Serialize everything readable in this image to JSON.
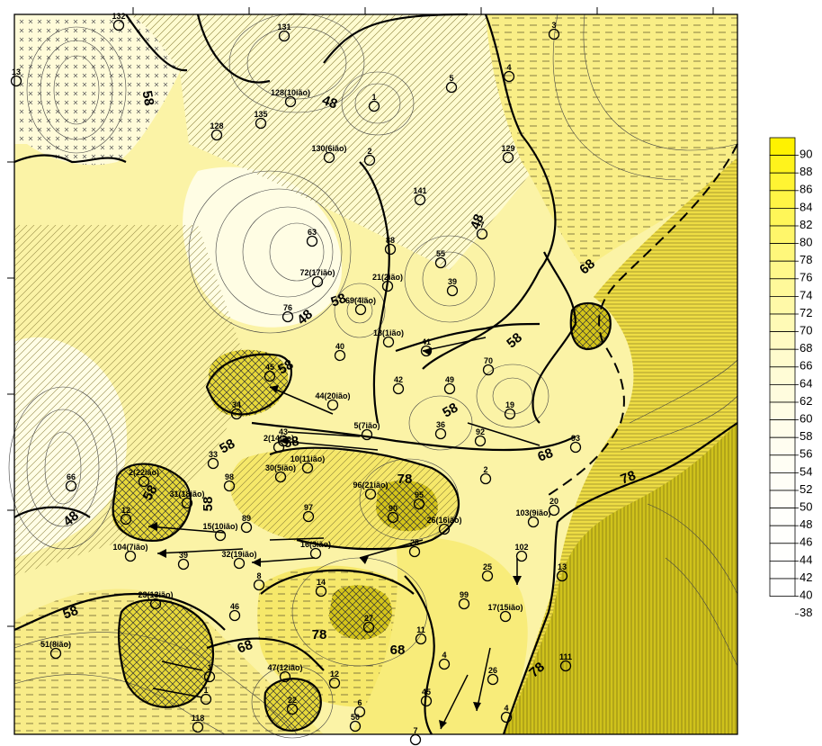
{
  "colors": {
    "low": "#ffffea",
    "mid": "#fbf29a",
    "high": "#f0e54a",
    "top": "#d9cc1a",
    "highest": "#c7b90e"
  },
  "legend": {
    "values": [
      "90",
      "88",
      "86",
      "84",
      "82",
      "80",
      "78",
      "76",
      "74",
      "72",
      "70",
      "68",
      "66",
      "64",
      "62",
      "60",
      "58",
      "56",
      "54",
      "52",
      "50",
      "48",
      "46",
      "44",
      "42",
      "40",
      "38"
    ],
    "fills": [
      "#fff200",
      "#fff31c",
      "#fff433",
      "#fff545",
      "#fff658",
      "#fff66a",
      "#fff77b",
      "#fff88b",
      "#fff99a",
      "#fff9a8",
      "#fffab6",
      "#fffbc3",
      "#fffbcd",
      "#fffcd6",
      "#fffcde",
      "#fffde5",
      "#fffdeb",
      "#fffdf0",
      "#fffef4",
      "#fffef7",
      "#fffef9",
      "#fffffb",
      "#fffffc",
      "#fffffd",
      "#fffffe",
      "#ffffff"
    ]
  },
  "contour_labels": [
    "58",
    "48",
    "48",
    "48",
    "68",
    "58",
    "58",
    "58",
    "58",
    "68",
    "78",
    "58",
    "58",
    "58",
    "58",
    "78",
    "68",
    "78",
    "68",
    "78",
    "58",
    "48"
  ],
  "wells": [
    {
      "label": "132"
    },
    {
      "label": "131"
    },
    {
      "label": "3"
    },
    {
      "label": "13"
    },
    {
      "label": "4"
    },
    {
      "label": "128(10ião)"
    },
    {
      "label": "1"
    },
    {
      "label": "5"
    },
    {
      "label": "128"
    },
    {
      "label": "135"
    },
    {
      "label": "130(6ião)"
    },
    {
      "label": "2"
    },
    {
      "label": "129"
    },
    {
      "label": "141"
    },
    {
      "label": "7"
    },
    {
      "label": "63"
    },
    {
      "label": "88"
    },
    {
      "label": "55"
    },
    {
      "label": "72(17ião)"
    },
    {
      "label": "21(2ião)"
    },
    {
      "label": "39"
    },
    {
      "label": "69(4ião)"
    },
    {
      "label": "76"
    },
    {
      "label": "18(1ião)"
    },
    {
      "label": "41"
    },
    {
      "label": "40"
    },
    {
      "label": "70"
    },
    {
      "label": "45"
    },
    {
      "label": "42"
    },
    {
      "label": "49"
    },
    {
      "label": "44(20ião)"
    },
    {
      "label": "19"
    },
    {
      "label": "34"
    },
    {
      "label": "5(7ião)"
    },
    {
      "label": "36"
    },
    {
      "label": "43"
    },
    {
      "label": "92"
    },
    {
      "label": "93"
    },
    {
      "label": "2(14ião)"
    },
    {
      "label": "33"
    },
    {
      "label": "10(11ião)"
    },
    {
      "label": "66"
    },
    {
      "label": "2(22ião)"
    },
    {
      "label": "98"
    },
    {
      "label": "30(5ião)"
    },
    {
      "label": "96(21ião)"
    },
    {
      "label": "95"
    },
    {
      "label": "2"
    },
    {
      "label": "31(18ião)"
    },
    {
      "label": "97"
    },
    {
      "label": "90"
    },
    {
      "label": "26(16ião)"
    },
    {
      "label": "103(9ião)"
    },
    {
      "label": "20"
    },
    {
      "label": "12"
    },
    {
      "label": "89"
    },
    {
      "label": "15(10ião)"
    },
    {
      "label": "16(3ião)"
    },
    {
      "label": "28"
    },
    {
      "label": "102"
    },
    {
      "label": "104(7ião)"
    },
    {
      "label": "39"
    },
    {
      "label": "32(19ião)"
    },
    {
      "label": "13"
    },
    {
      "label": "25"
    },
    {
      "label": "8"
    },
    {
      "label": "14"
    },
    {
      "label": "99"
    },
    {
      "label": "23(13ião)"
    },
    {
      "label": "46"
    },
    {
      "label": "27"
    },
    {
      "label": "17(15ião)"
    },
    {
      "label": "51(8ião)"
    },
    {
      "label": "1"
    },
    {
      "label": "11"
    },
    {
      "label": "4"
    },
    {
      "label": "111"
    },
    {
      "label": "26"
    },
    {
      "label": "47(12ião)"
    },
    {
      "label": "1"
    },
    {
      "label": "12"
    },
    {
      "label": "6"
    },
    {
      "label": "22"
    },
    {
      "label": "45"
    },
    {
      "label": "4"
    },
    {
      "label": "50"
    },
    {
      "label": "118"
    },
    {
      "label": "7"
    },
    {
      "label": "24"
    }
  ]
}
